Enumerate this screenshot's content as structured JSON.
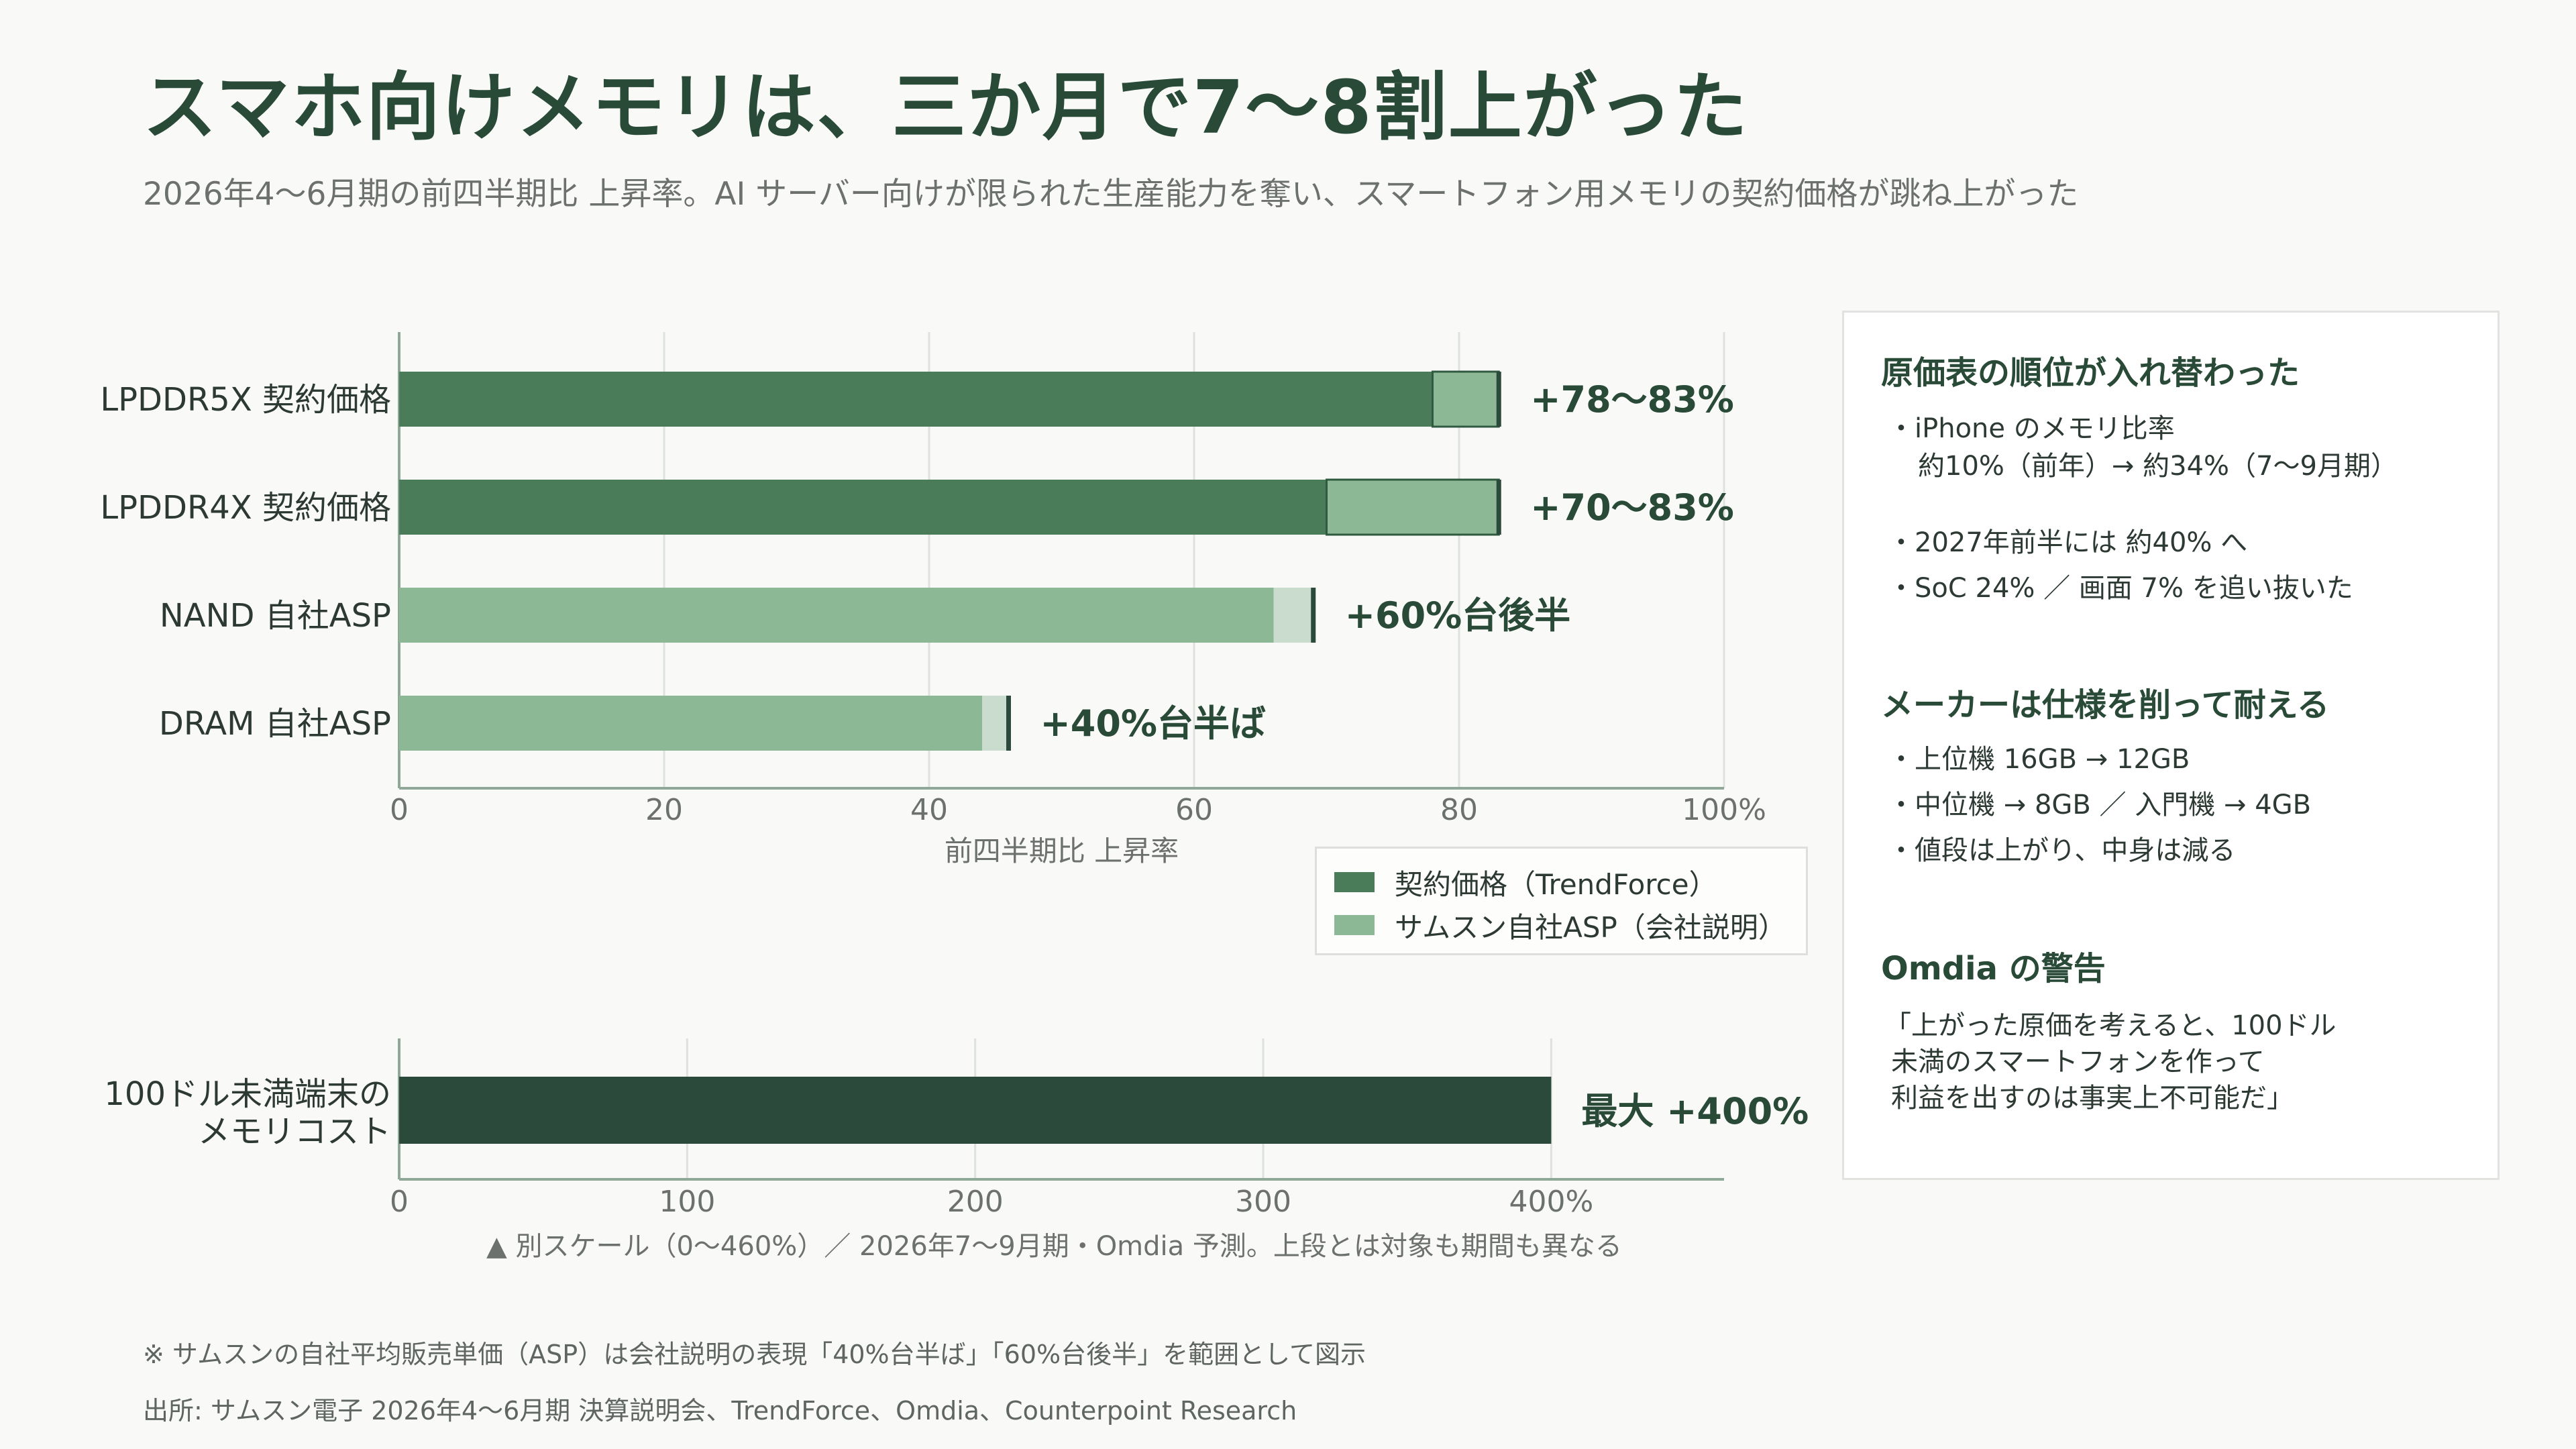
{
  "title": "スマホ向けメモリは、三か月で7〜8割上がった",
  "subtitle": "2026年4〜6月期の前四半期比 上昇率。AI サーバー向けが限られた生産能力を奪い、スマートフォン用メモリの契約価格が跳ね上がった",
  "colors": {
    "contract": "#4a7c59",
    "contract_ext": "#8db896",
    "asp": "#8db896",
    "asp_ext": "#c9dccd",
    "cost": "#2c4a3b",
    "accent_text": "#2a4a38"
  },
  "chart_data": [
    {
      "type": "bar",
      "orientation": "horizontal",
      "title": "",
      "xlabel": "前四半期比 上昇率",
      "ylabel": "",
      "xlim": [
        0,
        100
      ],
      "xticks": [
        "0",
        "20",
        "40",
        "60",
        "80",
        "100%"
      ],
      "grid": "vertical",
      "legend_position": "below-right",
      "categories": [
        "LPDDR5X 契約価格",
        "LPDDR4X 契約価格",
        "NAND 自社ASP",
        "DRAM 自社ASP"
      ],
      "series_group": [
        "contract",
        "contract",
        "asp",
        "asp"
      ],
      "ranges": [
        [
          78,
          83
        ],
        [
          70,
          83
        ],
        [
          66,
          69
        ],
        [
          44,
          46
        ]
      ],
      "value_labels": [
        "+78〜83%",
        "+70〜83%",
        "+60%台後半",
        "+40%台半ば"
      ],
      "legend": [
        {
          "name": "契約価格（TrendForce）",
          "color_key": "contract"
        },
        {
          "name": "サムスン自社ASP（会社説明）",
          "color_key": "asp"
        }
      ]
    },
    {
      "type": "bar",
      "orientation": "horizontal",
      "title": "",
      "xlabel": "",
      "ylabel": "",
      "xlim": [
        0,
        460
      ],
      "xticks": [
        "0",
        "100",
        "200",
        "300",
        "400%"
      ],
      "categories_lines": [
        "100ドル未満端末の",
        "メモリコスト"
      ],
      "values": [
        400
      ],
      "value_labels": [
        "最大 +400%"
      ]
    }
  ],
  "chart2_note": "▲ 別スケール（0〜460%）／ 2026年7〜9月期・Omdia 予測。上段とは対象も期間も異なる",
  "sidebar": {
    "sections": [
      {
        "heading": "原価表の順位が入れ替わった",
        "lines": [
          "・iPhone のメモリ比率",
          "約10%（前年）→ 約34%（7〜9月期）",
          "・2027年前半には 約40% へ",
          "・SoC 24% ／ 画面 7% を追い抜いた"
        ]
      },
      {
        "heading": "メーカーは仕様を削って耐える",
        "lines": [
          "・上位機 16GB → 12GB",
          "・中位機 → 8GB ／ 入門機 → 4GB",
          "・値段は上がり、中身は減る"
        ]
      },
      {
        "heading": "Omdia の警告",
        "lines": [
          "「上がった原価を考えると、100ドル",
          "未満のスマートフォンを作って",
          "利益を出すのは事実上不可能だ」"
        ]
      }
    ]
  },
  "footnotes": [
    "※ サムスンの自社平均販売単価（ASP）は会社説明の表現「40%台半ば」「60%台後半」を範囲として図示",
    "出所: サムスン電子 2026年4〜6月期 決算説明会、TrendForce、Omdia、Counterpoint Research"
  ]
}
